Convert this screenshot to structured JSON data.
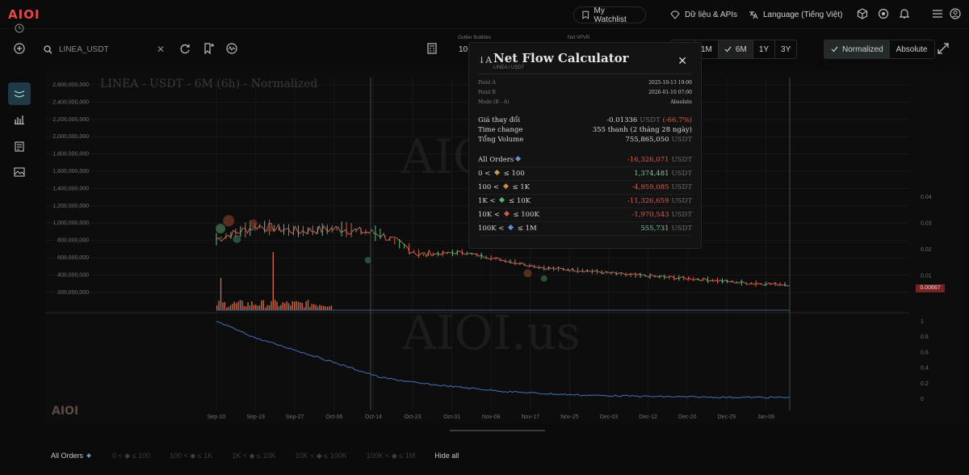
{
  "app": {
    "logo": "AIOI"
  },
  "topbar": {
    "watchlist_label": "My Watchlist",
    "data_api_label": "Dữ liệu & APIs",
    "language_label": "Language (Tiếng Việt)"
  },
  "toolbar": {
    "search_value": "LINEA_USDT",
    "outlier_label": "Outlier Bubbles",
    "outlier_value": "10",
    "net_vpvr_label": "Net VPVR",
    "range_buttons": [
      "1W",
      "1M",
      "6M",
      "1Y",
      "3Y"
    ],
    "range_active": "6M",
    "mode_buttons": [
      "Normalized",
      "Absolute"
    ],
    "mode_active": "Normalized"
  },
  "chart": {
    "title": "LINEA - USDT - 6M (6h) - Normalized",
    "watermark": "AIOI.us",
    "logo": "AIOI",
    "current_price": "0.00667",
    "colors": {
      "up": "#5fbf8a",
      "down": "#e05a4c",
      "volume": "#c86448",
      "cumulative": "#3d6aa8",
      "grid": "#181818"
    }
  },
  "chart_data": {
    "type": "line",
    "title": "LINEA - USDT - 6M (6h) - Normalized",
    "left_axis_ticks": [
      "2,600,000,000",
      "2,400,000,000",
      "2,200,000,000",
      "2,000,000,000",
      "1,800,000,000",
      "1,600,000,000",
      "1,400,000,000",
      "1,200,000,000",
      "1,000,000,000",
      "800,000,000",
      "600,000,000",
      "400,000,000",
      "200,000,000"
    ],
    "right_axis_ticks": [
      "0.04",
      "0.03",
      "0.02",
      "0.01"
    ],
    "lower_axis_ticks": [
      "1",
      "0.8",
      "0.6",
      "0.4",
      "0.2",
      "0"
    ],
    "x_ticks": [
      "Sep-10",
      "Sep-19",
      "Sep-27",
      "Oct-06",
      "Oct-14",
      "Oct-23",
      "Oct-31",
      "Nov-08",
      "Nov-17",
      "Nov-25",
      "Dec-03",
      "Dec-12",
      "Dec-20",
      "Dec-29",
      "Jan-06"
    ],
    "ylim_price": [
      0,
      0.045
    ],
    "series": [
      {
        "name": "Price (USDT)",
        "values": [
          0.024,
          0.029,
          0.027,
          0.028,
          0.026,
          0.018,
          0.019,
          0.016,
          0.013,
          0.012,
          0.0105,
          0.0095,
          0.0085,
          0.0072,
          0.0067
        ]
      },
      {
        "name": "Cumulative net flow (normalized)",
        "values": [
          1.0,
          0.78,
          0.62,
          0.45,
          0.28,
          0.2,
          0.15,
          0.1,
          0.07,
          0.05,
          0.04,
          0.03,
          0.025,
          0.022,
          0.02
        ]
      }
    ]
  },
  "popup": {
    "title": "Net Flow Calculator",
    "subtitle": "LINEA / USDT",
    "point_a_label": "Point A",
    "point_a_value": "2025-10-13 19:00",
    "point_b_label": "Point B",
    "point_b_value": "2026-01-10 07:00",
    "mode_label": "Mode (B - A)",
    "mode_value": "Absolute",
    "price_change_label": "Giá thay đổi",
    "price_change_value": "-0.01336",
    "price_change_unit": "USDT",
    "price_change_pct": "(-66.7%)",
    "time_change_label": "Time change",
    "time_change_value": "355 thanh (2 tháng 28 ngày)",
    "volume_label": "Tổng Volume",
    "volume_value": "755,865,050",
    "volume_unit": "USDT",
    "orders": [
      {
        "label": "All Orders",
        "value": "-16,326,071",
        "unit": "USDT",
        "sign": "neg",
        "color": "#6a8fd0"
      },
      {
        "label": "0 < ◆ ≤ 100",
        "value": "1,374,481",
        "unit": "USDT",
        "sign": "pos",
        "color": "#c9a040"
      },
      {
        "label": "100 < ◆ ≤ 1K",
        "value": "-4,959,085",
        "unit": "USDT",
        "sign": "neg",
        "color": "#d28a3a"
      },
      {
        "label": "1K < ◆ ≤ 10K",
        "value": "-11,326,659",
        "unit": "USDT",
        "sign": "neg",
        "color": "#58b36a"
      },
      {
        "label": "10K < ◆ ≤ 100K",
        "value": "-1,970,543",
        "unit": "USDT",
        "sign": "neg",
        "color": "#d05a4a"
      },
      {
        "label": "100K < ◆ ≤ 1M",
        "value": "555,731",
        "unit": "USDT",
        "sign": "pos",
        "color": "#6a8fd0"
      }
    ]
  },
  "legend": {
    "items": [
      "All Orders",
      "0 < ◆ ≤ 100",
      "100 < ◆ ≤ 1K",
      "1K < ◆ ≤ 10K",
      "10K < ◆ ≤ 100K",
      "100K < ◆ ≤ 1M"
    ],
    "hide_all_label": "Hide all"
  }
}
